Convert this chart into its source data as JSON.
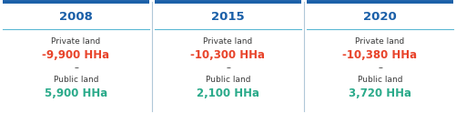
{
  "panels": [
    {
      "year": "2008",
      "private_value": "-9,900 HHa",
      "public_value": "5,900 HHa"
    },
    {
      "year": "2015",
      "private_value": "-10,300 HHa",
      "public_value": "2,100 HHa"
    },
    {
      "year": "2020",
      "private_value": "-10,380 HHa",
      "public_value": "3,720 HHa"
    }
  ],
  "year_color": "#1a5fa8",
  "private_label": "Private land",
  "public_label": "Public land",
  "private_value_color": "#e8432a",
  "public_value_color": "#2aaa8a",
  "label_color": "#3a3a3a",
  "dash_color": "#3a3a3a",
  "background_color": "#ffffff",
  "top_line_color": "#1a5fa8",
  "thin_line_color": "#5bb8d4",
  "divider_color": "#b0c8d8",
  "year_fontsize": 9.5,
  "label_fontsize": 6.5,
  "value_fontsize": 8.5,
  "dash_fontsize": 7
}
